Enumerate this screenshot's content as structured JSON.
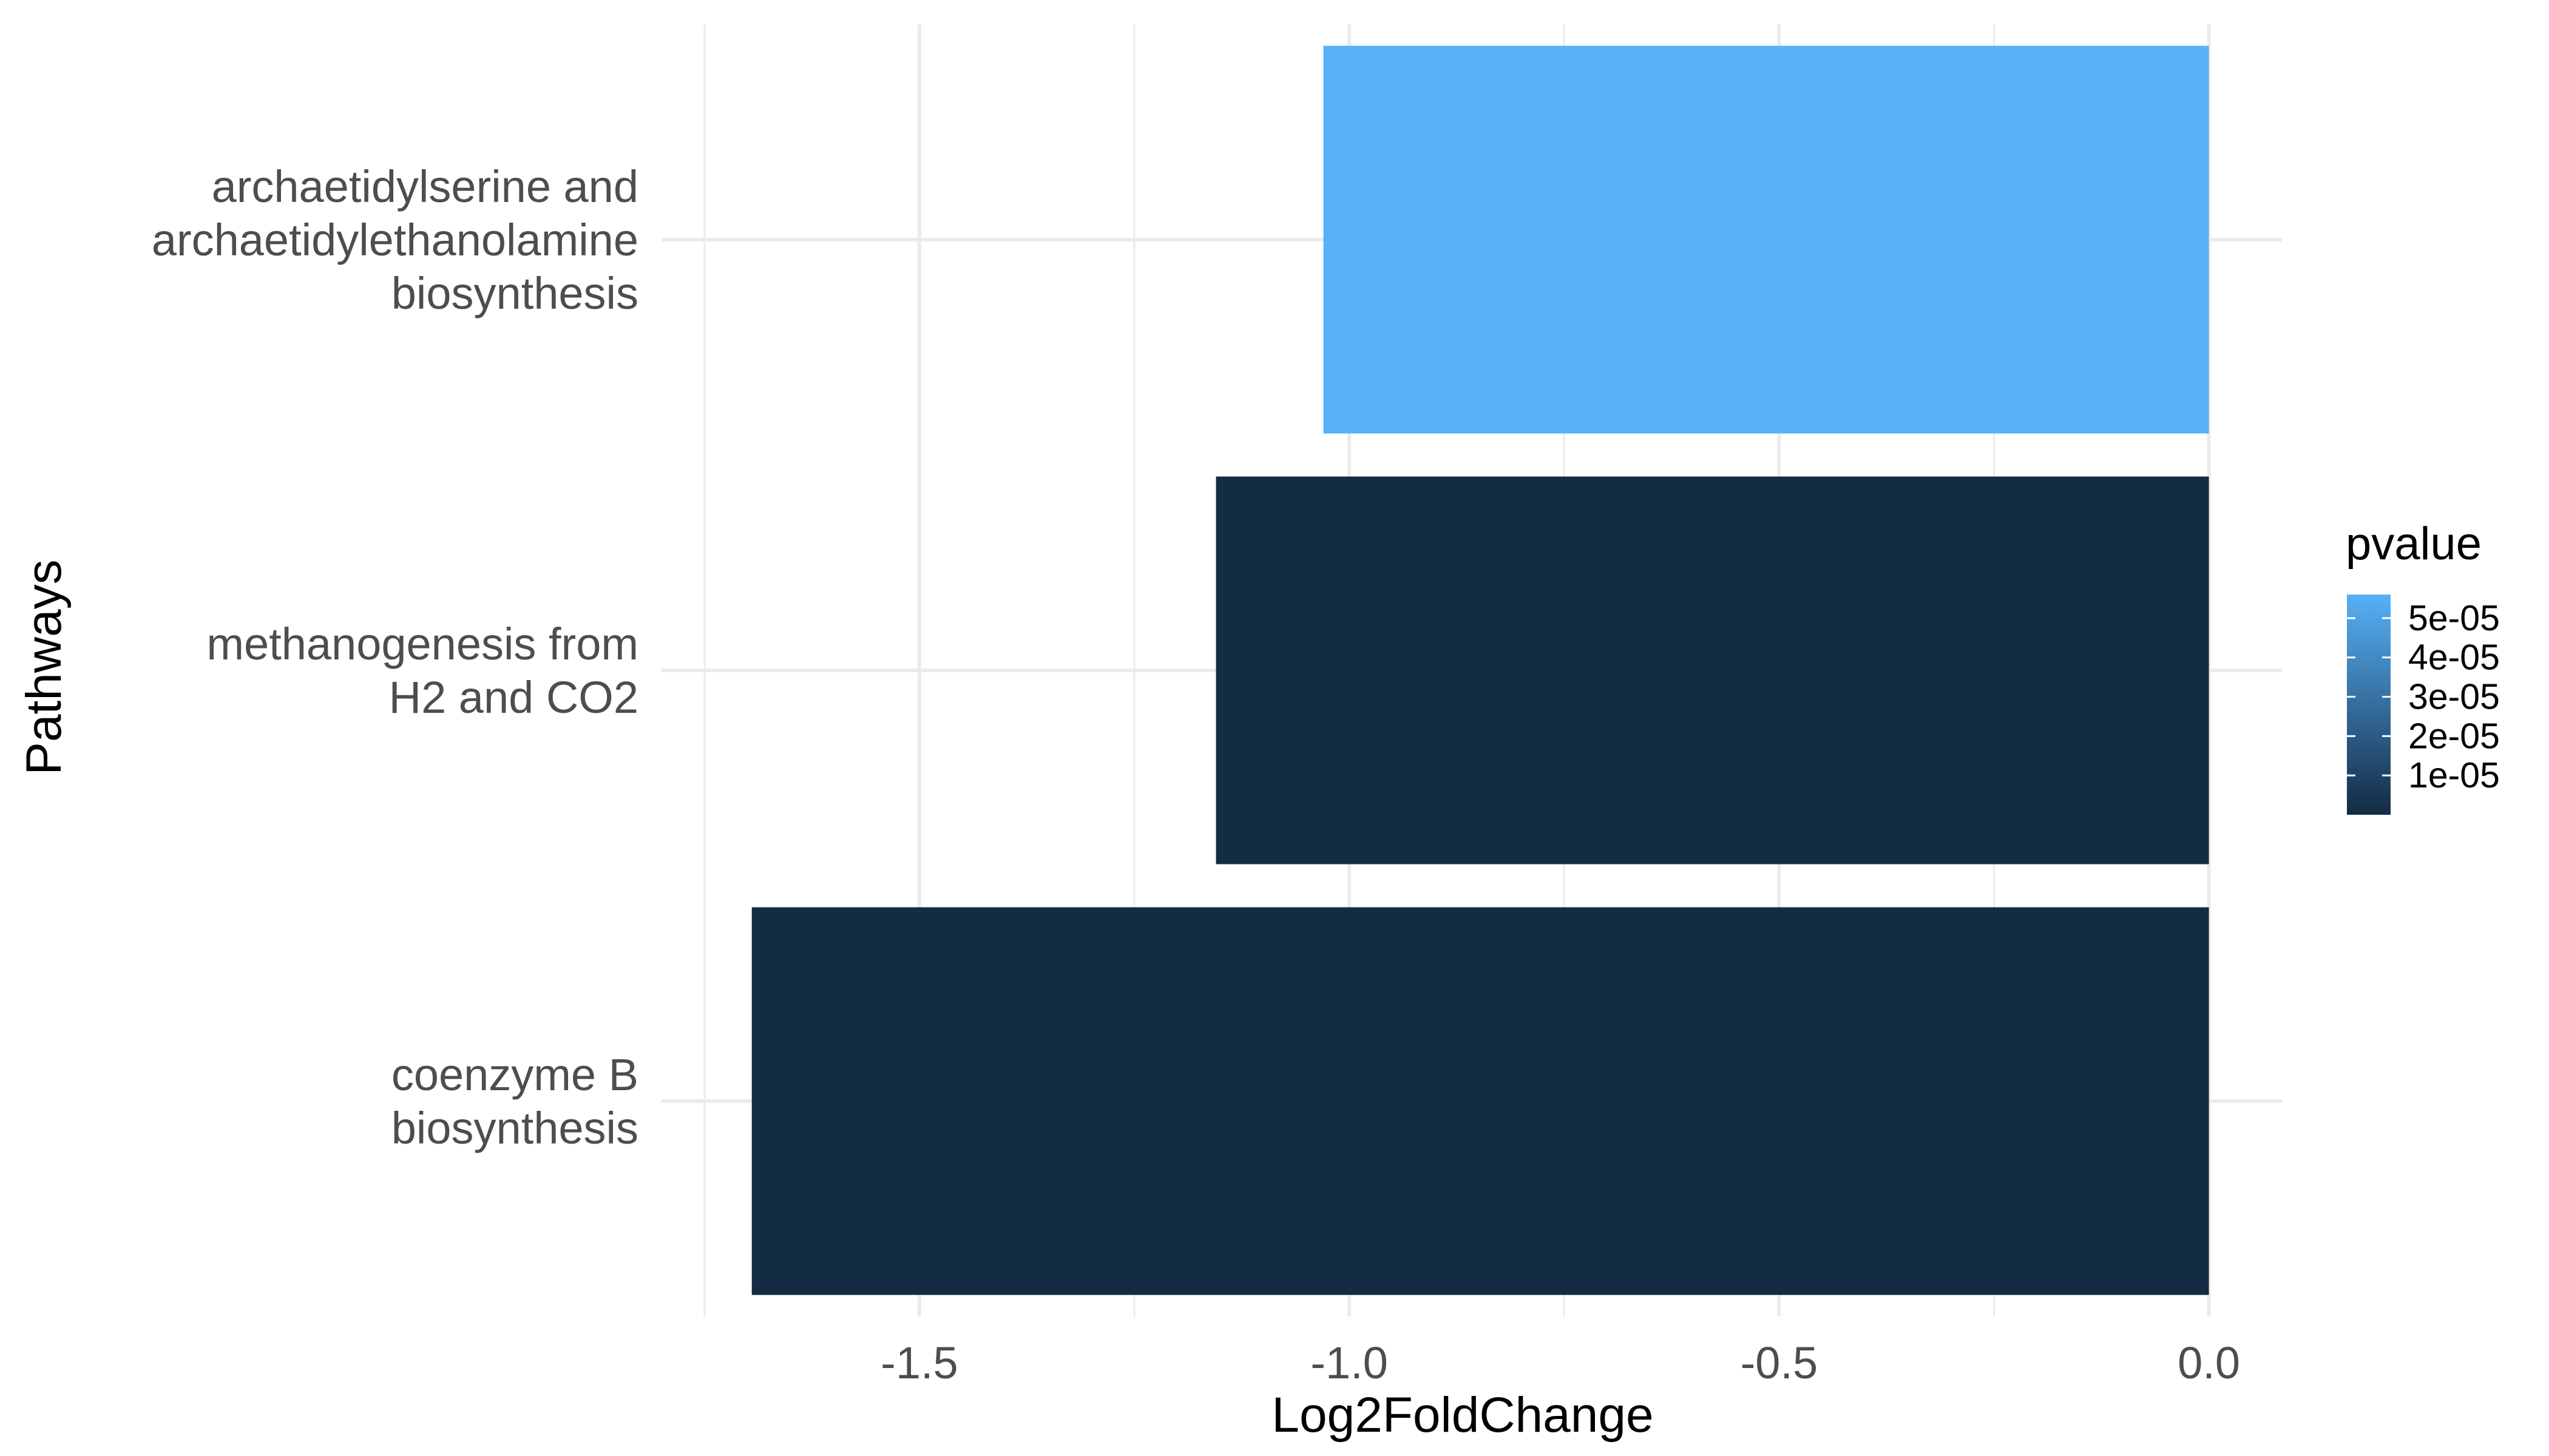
{
  "chart_data": {
    "type": "bar",
    "orientation": "horizontal",
    "xlabel": "Log2FoldChange",
    "ylabel": "Pathways",
    "xlim": [
      -1.8,
      0.085
    ],
    "x_ticks": [
      -1.5,
      -1.0,
      -0.5,
      0.0
    ],
    "x_tick_labels": [
      "-1.5",
      "-1.0",
      "-0.5",
      "0.0"
    ],
    "x_minor_ticks": [
      -1.75,
      -1.25,
      -0.75,
      -0.25
    ],
    "categories": [
      {
        "lines": [
          "archaetidylserine and",
          "archaetidylethanolamine",
          "biosynthesis"
        ]
      },
      {
        "lines": [
          "methanogenesis from",
          "H2 and CO2"
        ]
      },
      {
        "lines": [
          "coenzyme B",
          "biosynthesis"
        ]
      }
    ],
    "values": [
      -1.03,
      -1.155,
      -1.695
    ],
    "pvalues": [
      5.6e-05,
      1e-07,
      1e-07
    ],
    "grid": true,
    "legend": {
      "title": "pvalue",
      "position": "right",
      "labels": [
        "5e-05",
        "4e-05",
        "3e-05",
        "2e-05",
        "1e-05"
      ],
      "label_values": [
        5e-05,
        4e-05,
        3e-05,
        2e-05,
        1e-05
      ],
      "range": [
        0,
        5.6e-05
      ],
      "color_low": "#132B43",
      "color_high": "#56B1F7"
    }
  }
}
